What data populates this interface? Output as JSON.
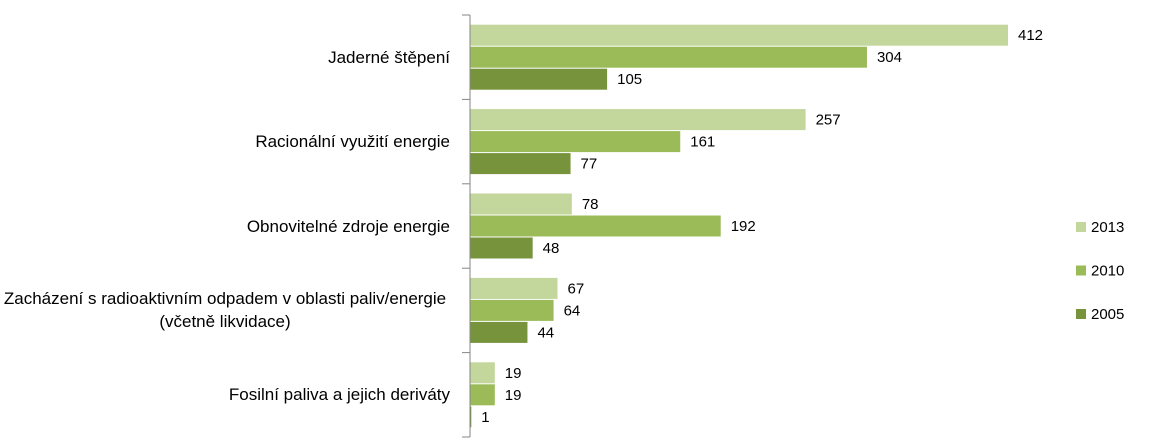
{
  "chart_data": {
    "type": "bar",
    "orientation": "horizontal",
    "categories": [
      "Jaderné štěpení",
      "Racionální využití energie",
      "Obnovitelné zdroje energie",
      "Zacházení s radioaktivním odpadem v oblasti paliv/energie (včetně likvidace)",
      "Fosilní paliva a jejich deriváty"
    ],
    "series": [
      {
        "name": "2013",
        "color": "#c3d69b",
        "values": [
          412,
          257,
          78,
          67,
          19
        ]
      },
      {
        "name": "2010",
        "color": "#9bbb59",
        "values": [
          304,
          161,
          192,
          64,
          19
        ]
      },
      {
        "name": "2005",
        "color": "#77933c",
        "values": [
          105,
          77,
          48,
          44,
          1
        ]
      }
    ],
    "legend": "right"
  }
}
